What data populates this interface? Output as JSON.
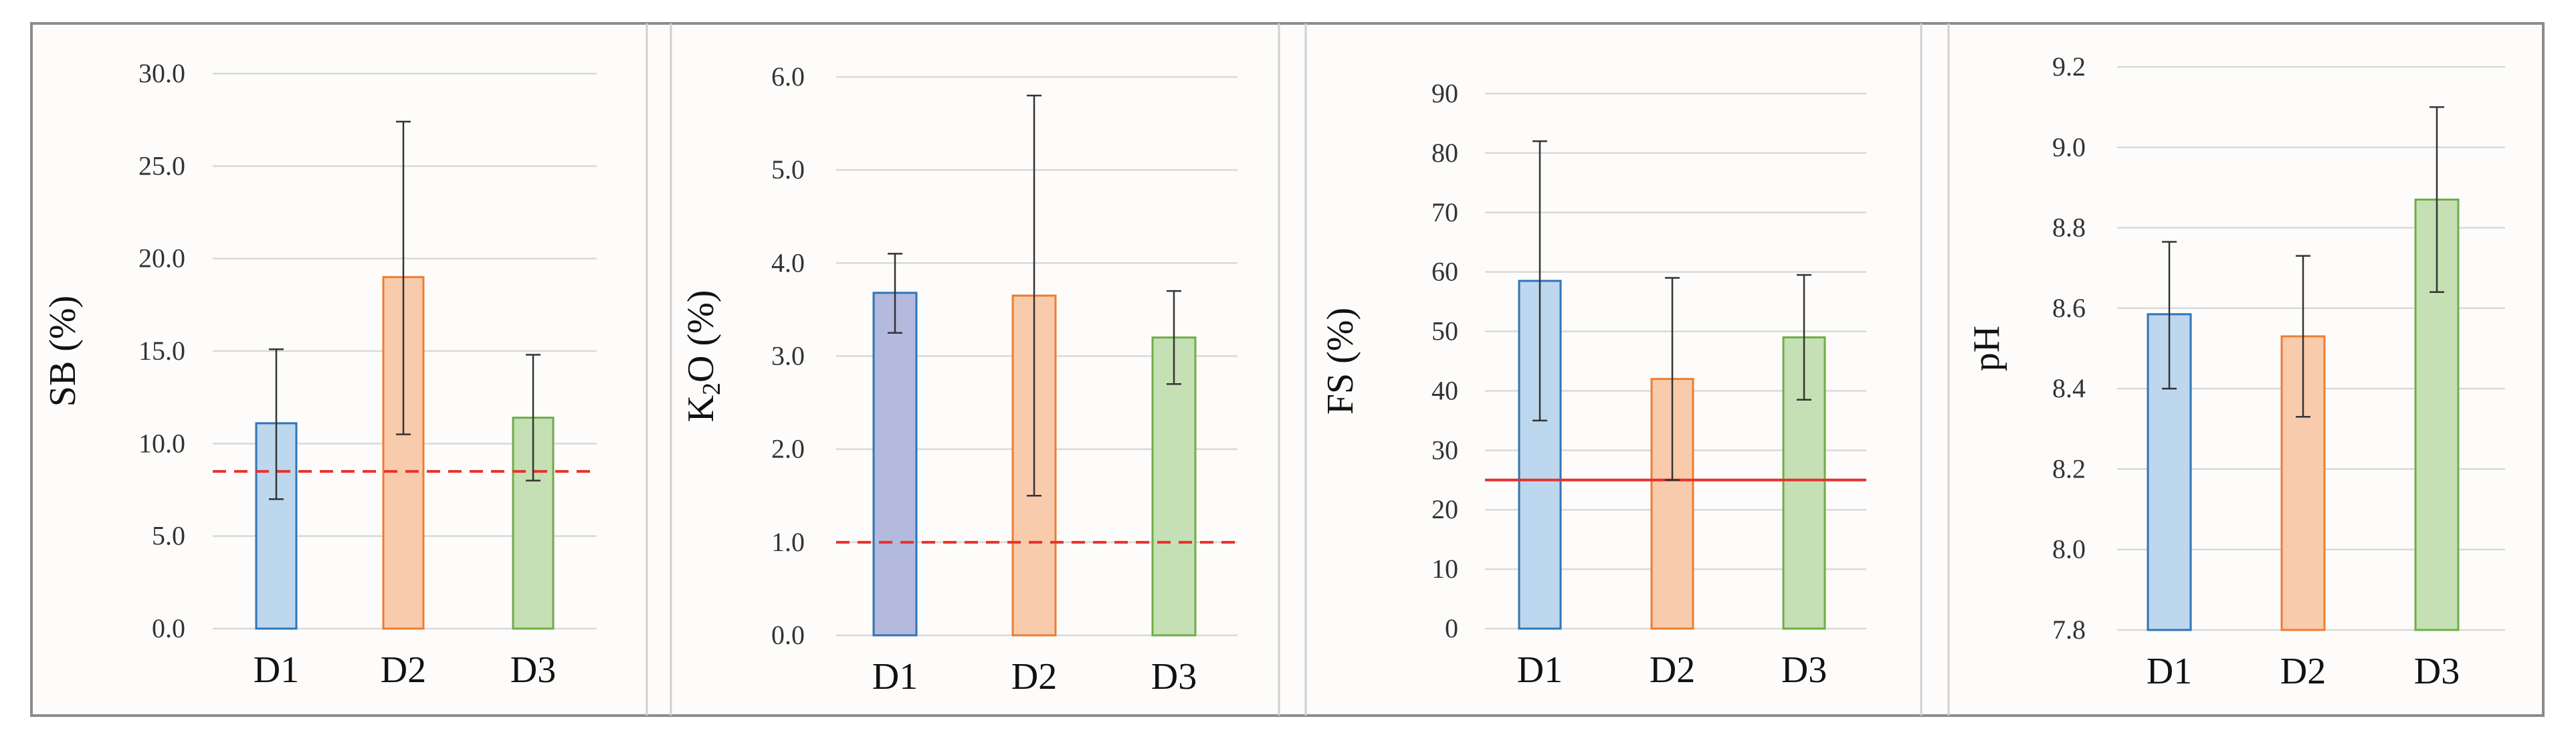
{
  "chart_data": [
    {
      "type": "bar",
      "ylabel": "SB (%)",
      "categories": [
        "D1",
        "D2",
        "D3"
      ],
      "values": [
        11.1,
        19.0,
        11.4
      ],
      "err_low": [
        7.0,
        10.5,
        8.0
      ],
      "err_high": [
        15.1,
        27.4,
        14.8
      ],
      "ylim": [
        0,
        30
      ],
      "yticks": [
        "0.0",
        "5.0",
        "10.0",
        "15.0",
        "20.0",
        "25.0",
        "30.0"
      ],
      "reference_line": {
        "value": 8.5,
        "style": "dashed",
        "color": "#e8312c"
      },
      "colors": {
        "fill": [
          "#bdd7ee",
          "#f8cbad",
          "#c5e0b4"
        ],
        "stroke": [
          "#2e75b6",
          "#ed7d31",
          "#70ad47"
        ]
      }
    },
    {
      "type": "bar",
      "ylabel_main": "K",
      "ylabel_sub": "2",
      "ylabel_rest": "O (%)",
      "categories": [
        "D1",
        "D2",
        "D3"
      ],
      "values": [
        3.68,
        3.65,
        3.2
      ],
      "err_low": [
        3.25,
        1.5,
        2.7
      ],
      "err_high": [
        4.1,
        5.8,
        3.7
      ],
      "ylim": [
        0,
        6
      ],
      "yticks": [
        "0.0",
        "1.0",
        "2.0",
        "3.0",
        "4.0",
        "5.0",
        "6.0"
      ],
      "reference_line": {
        "value": 1.0,
        "style": "dashed",
        "color": "#e8312c"
      },
      "colors": {
        "fill": [
          "#b4b9de",
          "#f8cbad",
          "#c5e0b4"
        ],
        "stroke": [
          "#2e75b6",
          "#ed7d31",
          "#70ad47"
        ]
      }
    },
    {
      "type": "bar",
      "ylabel": "FS (%)",
      "categories": [
        "D1",
        "D2",
        "D3"
      ],
      "values": [
        58.5,
        42.0,
        49.0
      ],
      "err_low": [
        35.0,
        25.0,
        38.5
      ],
      "err_high": [
        82.0,
        59.0,
        59.5
      ],
      "ylim": [
        0,
        90
      ],
      "yticks": [
        "0",
        "10",
        "20",
        "30",
        "40",
        "50",
        "60",
        "70",
        "80",
        "90"
      ],
      "reference_line": {
        "value": 25.0,
        "style": "solid",
        "color": "#e8312c"
      },
      "colors": {
        "fill": [
          "#bdd7ee",
          "#f8cbad",
          "#c5e0b4"
        ],
        "stroke": [
          "#2e75b6",
          "#ed7d31",
          "#70ad47"
        ]
      }
    },
    {
      "type": "bar",
      "ylabel": "pH",
      "categories": [
        "D1",
        "D2",
        "D3"
      ],
      "values": [
        8.585,
        8.53,
        8.87
      ],
      "err_low": [
        8.4,
        8.33,
        8.64
      ],
      "err_high": [
        8.765,
        8.73,
        9.1
      ],
      "ylim": [
        7.8,
        9.2
      ],
      "yticks": [
        "7.8",
        "8.0",
        "8.2",
        "8.4",
        "8.6",
        "8.8",
        "9.0",
        "9.2"
      ],
      "reference_line": null,
      "colors": {
        "fill": [
          "#bdd7ee",
          "#f8cbad",
          "#c5e0b4"
        ],
        "stroke": [
          "#2e75b6",
          "#ed7d31",
          "#70ad47"
        ]
      }
    }
  ]
}
